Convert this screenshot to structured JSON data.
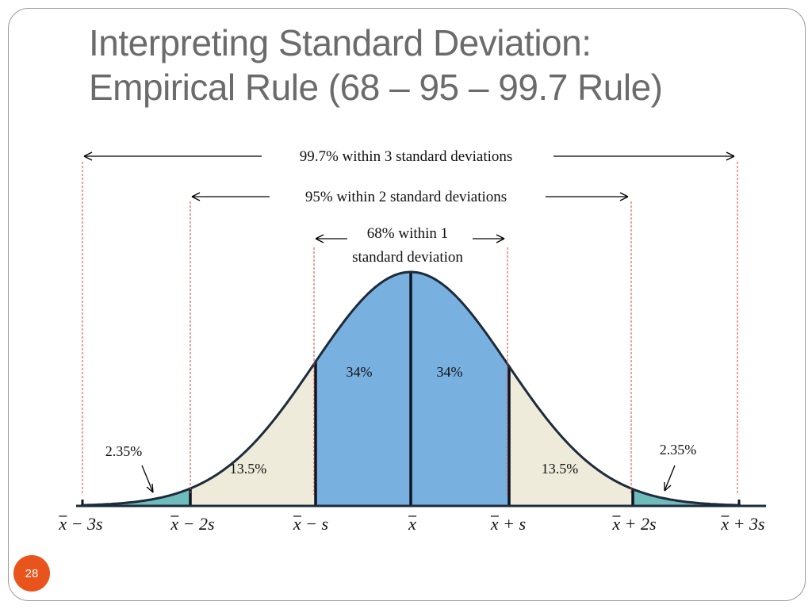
{
  "slide": {
    "title_line1": "Interpreting Standard Deviation:",
    "title_line2": "Empirical Rule (68 – 95 – 99.7 Rule)",
    "slide_number": "28"
  },
  "ranges": {
    "three_sd": "99.7% within 3 standard deviations",
    "two_sd": "95% within 2 standard deviations",
    "one_sd_line1": "68% within 1",
    "one_sd_line2": "standard deviation"
  },
  "regions": [
    {
      "label": "2.35%",
      "color": "#6fbcbc"
    },
    {
      "label": "13.5%",
      "color": "#eeebdb"
    },
    {
      "label": "34%",
      "color": "#78b0e0"
    },
    {
      "label": "34%",
      "color": "#78b0e0"
    },
    {
      "label": "13.5%",
      "color": "#eeebdb"
    },
    {
      "label": "2.35%",
      "color": "#6fbcbc"
    }
  ],
  "axis_labels": [
    {
      "bar": "x",
      "rest": " − 3s"
    },
    {
      "bar": "x",
      "rest": " − 2s"
    },
    {
      "bar": "x",
      "rest": " − s"
    },
    {
      "bar": "x",
      "rest": ""
    },
    {
      "bar": "x",
      "rest": " + s"
    },
    {
      "bar": "x",
      "rest": " + 2s"
    },
    {
      "bar": "x",
      "rest": " + 3s"
    }
  ],
  "colors": {
    "title": "#6b6b6b",
    "curve": "#1d2b3a",
    "guide_lines": "#d9463a",
    "badge": "#e8541c"
  }
}
